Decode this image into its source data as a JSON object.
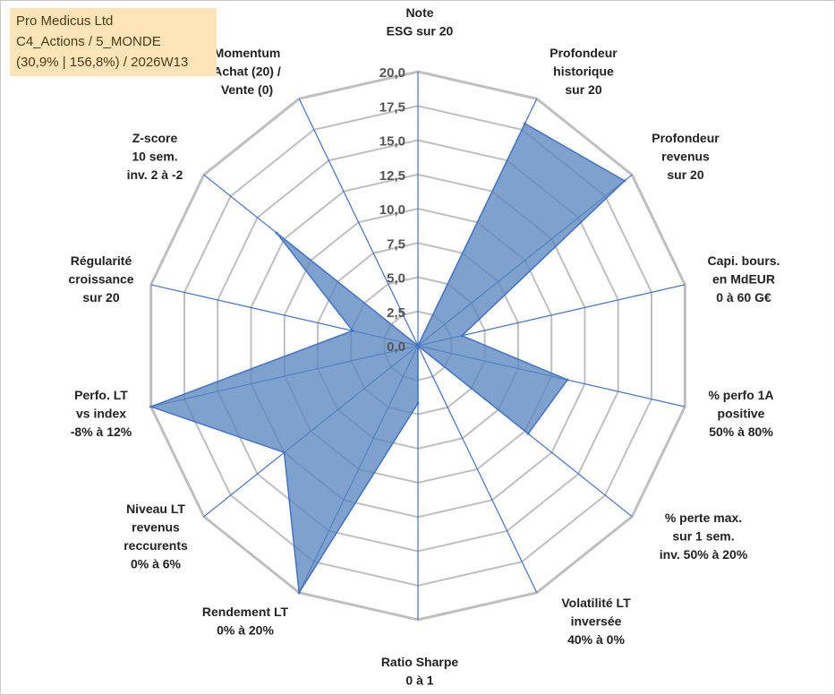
{
  "info_box": {
    "company": "Pro Medicus Ltd",
    "category": "C4_Actions / 5_MONDE",
    "stats": "(30,9% | 156,8%) / 2026W13"
  },
  "chart_data": {
    "type": "radar",
    "title": "",
    "r_range": [
      0,
      20
    ],
    "tick_step": 2.5,
    "tick_labels": [
      "0,0",
      "2,5",
      "5,0",
      "7,5",
      "10,0",
      "12,5",
      "15,0",
      "17,5",
      "20,0"
    ],
    "grid": true,
    "fill_color": "#5a86bf",
    "line_color": "#4472c4",
    "grid_color": "#bfbfbf",
    "axes": [
      {
        "label": [
          "Note",
          "ESG sur 20"
        ],
        "value": 0
      },
      {
        "label": [
          "Profondeur",
          "historique",
          "sur 20"
        ],
        "value": 18
      },
      {
        "label": [
          "Profondeur",
          "revenus",
          "sur 20"
        ],
        "value": 19.3
      },
      {
        "label": [
          "Capi. bours.",
          "en MdEUR",
          "0 à 60 G€"
        ],
        "value": 3.3
      },
      {
        "label": [
          "% perfo 1A",
          "positive",
          "50% à 80%"
        ],
        "value": 11.2
      },
      {
        "label": [
          "% perte max.",
          "sur 1 sem.",
          "inv. 50% à 20%"
        ],
        "value": 10.3
      },
      {
        "label": [
          "Volatilité LT",
          "inversée",
          "40% à 0%"
        ],
        "value": 0
      },
      {
        "label": [
          "Ratio Sharpe",
          "0 à 1"
        ],
        "value": 4.2
      },
      {
        "label": [
          "Rendement LT",
          "0% à 20%"
        ],
        "value": 20
      },
      {
        "label": [
          "Niveau LT",
          "revenus",
          "reccurents",
          "0% à 6%"
        ],
        "value": 12.5
      },
      {
        "label": [
          "Perfo. LT",
          "vs index",
          "-8% à 12%"
        ],
        "value": 20
      },
      {
        "label": [
          "Régularité",
          "croissance",
          "sur 20"
        ],
        "value": 4.9
      },
      {
        "label": [
          "Z-score",
          "10 sem.",
          "inv. 2 à -2"
        ],
        "value": 13.2
      },
      {
        "label": [
          "Momentum",
          "Achat (20) /",
          "Vente (0)"
        ],
        "value": 0
      }
    ]
  }
}
